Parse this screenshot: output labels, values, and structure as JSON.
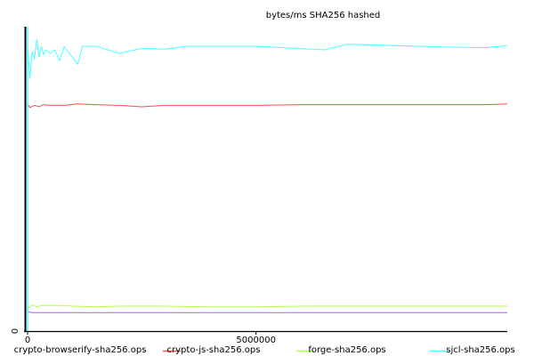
{
  "chart_data": {
    "type": "line",
    "title": "bytes/ms SHA256 hashed",
    "xlabel": "",
    "ylabel": "",
    "xlim": [
      0,
      10500000
    ],
    "ylim": [
      0,
      410
    ],
    "grid": false,
    "legend_position": "bottom",
    "x_ticks": [
      {
        "value": 0,
        "label": "0"
      },
      {
        "value": 5000000,
        "label": "5000000"
      }
    ],
    "y_ticks": [
      {
        "value": 0,
        "label": "0"
      }
    ],
    "series": [
      {
        "name": "crypto-browserify-sha256.ops",
        "color": "#ff4d4d",
        "x": [
          0,
          50000,
          150000,
          250000,
          350000,
          500000,
          800000,
          1100000,
          1500000,
          2000000,
          2500000,
          3000000,
          4000000,
          5000000,
          6000000,
          7000000,
          8000000,
          9000000,
          10000000,
          10500000
        ],
        "y": [
          304,
          299,
          302,
          300,
          303,
          302,
          302,
          304,
          303,
          302,
          300,
          302,
          302,
          302,
          303,
          303,
          303,
          303,
          303,
          304
        ]
      },
      {
        "name": "crypto-js-sha256.ops",
        "color": "#b3ff4d",
        "x": [
          0,
          30000,
          100000,
          200000,
          300000,
          500000,
          700000,
          1000000,
          1500000,
          2000000,
          3000000,
          4000000,
          5000000,
          6000000,
          7000000,
          8000000,
          9000000,
          10000000,
          10500000
        ],
        "y": [
          20,
          18,
          22,
          19,
          21,
          21,
          21,
          20,
          19,
          20,
          20,
          19,
          19,
          20,
          20,
          20,
          20,
          20,
          20
        ]
      },
      {
        "name": "forge-sha256.ops",
        "color": "#4dffff",
        "x": [
          0,
          50000,
          100000,
          150000,
          200000,
          250000,
          300000,
          350000,
          400000,
          500000,
          600000,
          700000,
          800000,
          900000,
          1100000,
          1200000,
          1500000,
          2000000,
          2500000,
          3000000,
          3500000,
          4000000,
          5000000,
          6500000,
          7000000,
          8000000,
          8500000,
          9000000,
          10000000,
          10500000
        ],
        "y": [
          385,
          340,
          378,
          367,
          395,
          370,
          385,
          373,
          380,
          375,
          380,
          365,
          384,
          376,
          360,
          385,
          385,
          375,
          382,
          381,
          385,
          385,
          385,
          380,
          388,
          386,
          385,
          384,
          383,
          386
        ]
      },
      {
        "name": "sjcl-sha256.ops",
        "color": "#9966ff",
        "x": [
          0,
          100000,
          1000000,
          5000000,
          10000000,
          10500000
        ],
        "y": [
          12,
          11,
          11,
          11,
          11,
          11
        ]
      }
    ],
    "y_axis_color": "#4dffff"
  }
}
